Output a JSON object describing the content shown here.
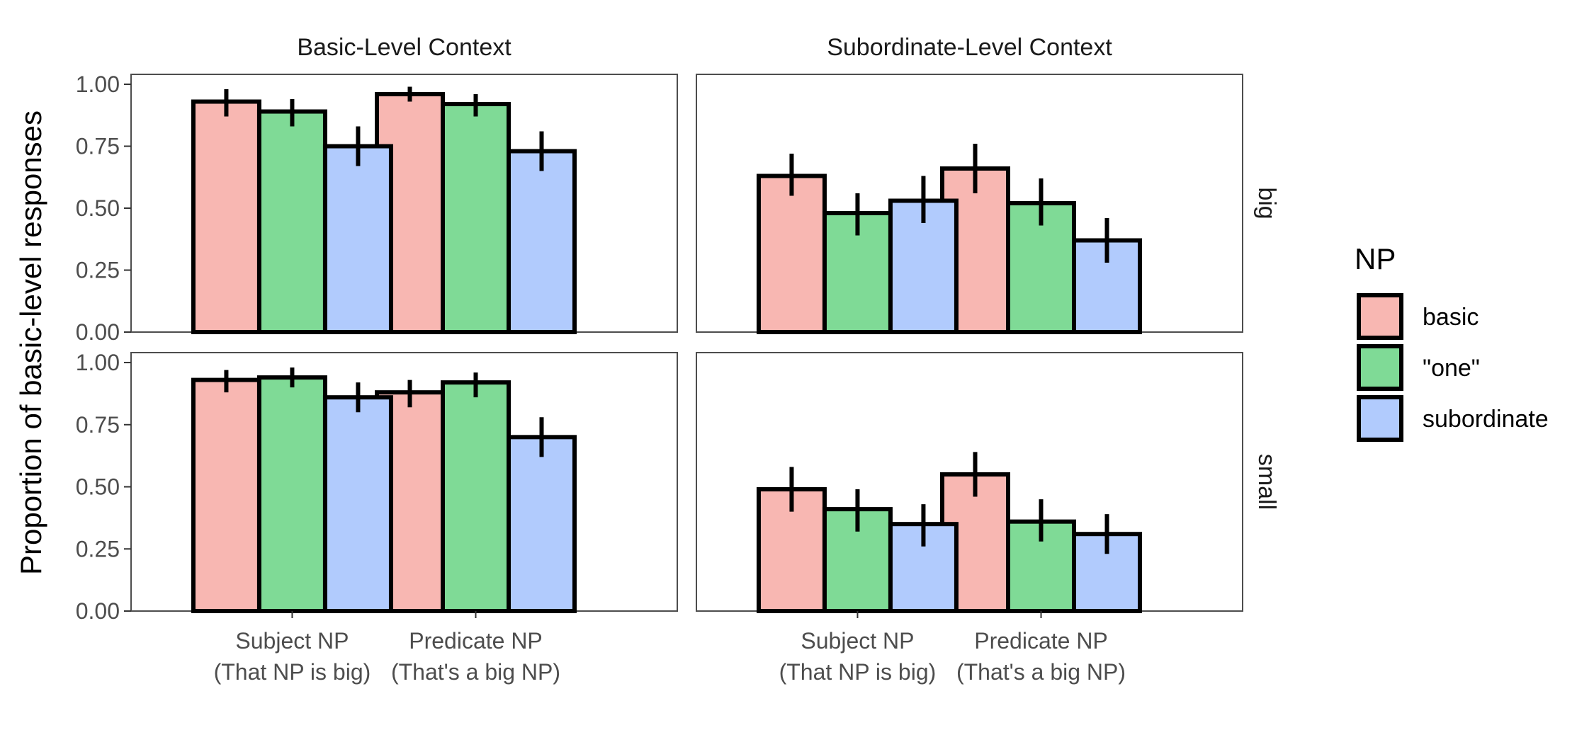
{
  "chart_data": {
    "type": "bar",
    "ylabel": "Proportion of basic-level responses",
    "xlabel": "",
    "ylim": [
      0,
      1.04
    ],
    "yticks": [
      "0.00",
      "0.25",
      "0.50",
      "0.75",
      "1.00"
    ],
    "categories": [
      [
        "Subject NP",
        "(That NP is big)"
      ],
      [
        "Predicate NP",
        "(That's a big NP)"
      ]
    ],
    "column_facets": [
      "Basic-Level Context",
      "Subordinate-Level Context"
    ],
    "row_facets": [
      "big",
      "small"
    ],
    "legend": {
      "title": "NP",
      "position": "right",
      "entries": [
        {
          "label": "basic",
          "color": "#F8B7B2"
        },
        {
          "label": "\"one\"",
          "color": "#7FDA96"
        },
        {
          "label": "subordinate",
          "color": "#B1CBFD"
        }
      ]
    },
    "grid": false,
    "panels": [
      {
        "row": "big",
        "column": "Basic-Level Context",
        "series": [
          {
            "name": "basic",
            "values": [
              0.93,
              0.96
            ],
            "ci": [
              [
                0.87,
                0.98
              ],
              [
                0.93,
                0.99
              ]
            ]
          },
          {
            "name": "\"one\"",
            "values": [
              0.89,
              0.92
            ],
            "ci": [
              [
                0.83,
                0.94
              ],
              [
                0.87,
                0.96
              ]
            ]
          },
          {
            "name": "subordinate",
            "values": [
              0.75,
              0.73
            ],
            "ci": [
              [
                0.67,
                0.83
              ],
              [
                0.65,
                0.81
              ]
            ]
          }
        ]
      },
      {
        "row": "big",
        "column": "Subordinate-Level Context",
        "series": [
          {
            "name": "basic",
            "values": [
              0.63,
              0.66
            ],
            "ci": [
              [
                0.55,
                0.72
              ],
              [
                0.56,
                0.76
              ]
            ]
          },
          {
            "name": "\"one\"",
            "values": [
              0.48,
              0.52
            ],
            "ci": [
              [
                0.39,
                0.56
              ],
              [
                0.43,
                0.62
              ]
            ]
          },
          {
            "name": "subordinate",
            "values": [
              0.53,
              0.37
            ],
            "ci": [
              [
                0.44,
                0.63
              ],
              [
                0.28,
                0.46
              ]
            ]
          }
        ]
      },
      {
        "row": "small",
        "column": "Basic-Level Context",
        "series": [
          {
            "name": "basic",
            "values": [
              0.93,
              0.88
            ],
            "ci": [
              [
                0.88,
                0.97
              ],
              [
                0.82,
                0.93
              ]
            ]
          },
          {
            "name": "\"one\"",
            "values": [
              0.94,
              0.92
            ],
            "ci": [
              [
                0.9,
                0.98
              ],
              [
                0.86,
                0.96
              ]
            ]
          },
          {
            "name": "subordinate",
            "values": [
              0.86,
              0.7
            ],
            "ci": [
              [
                0.8,
                0.92
              ],
              [
                0.62,
                0.78
              ]
            ]
          }
        ]
      },
      {
        "row": "small",
        "column": "Subordinate-Level Context",
        "series": [
          {
            "name": "basic",
            "values": [
              0.49,
              0.55
            ],
            "ci": [
              [
                0.4,
                0.58
              ],
              [
                0.46,
                0.64
              ]
            ]
          },
          {
            "name": "\"one\"",
            "values": [
              0.41,
              0.36
            ],
            "ci": [
              [
                0.32,
                0.49
              ],
              [
                0.28,
                0.45
              ]
            ]
          },
          {
            "name": "subordinate",
            "values": [
              0.35,
              0.31
            ],
            "ci": [
              [
                0.26,
                0.43
              ],
              [
                0.23,
                0.39
              ]
            ]
          }
        ]
      }
    ]
  }
}
